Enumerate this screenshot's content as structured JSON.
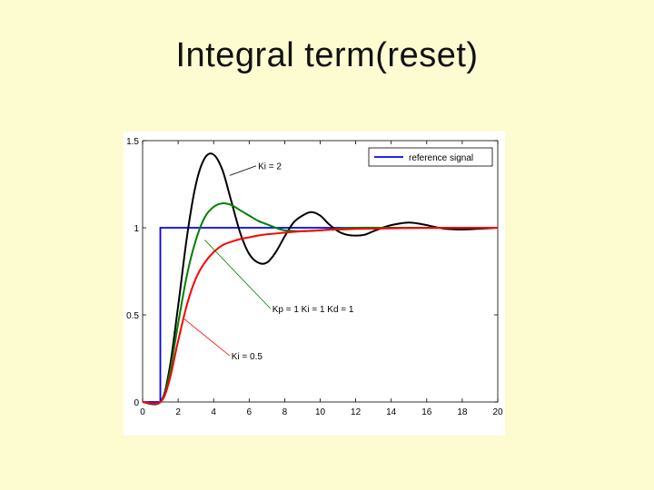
{
  "slide": {
    "title": "Integral term(reset)"
  },
  "chart_data": {
    "type": "line",
    "title": "",
    "xlabel": "",
    "ylabel": "",
    "xlim": [
      0,
      20
    ],
    "ylim": [
      0,
      1.5
    ],
    "xticks": [
      "0",
      "2",
      "4",
      "6",
      "8",
      "10",
      "12",
      "14",
      "16",
      "18",
      "20"
    ],
    "yticks": [
      "0",
      "0.5",
      "1",
      "1.5"
    ],
    "grid": false,
    "legend": {
      "placement": "top-right",
      "entries": [
        "reference signal"
      ]
    },
    "colors": {
      "reference": "#0000ff",
      "ki2": "#000000",
      "kp1": "#008000",
      "ki05": "#ff0000"
    },
    "series": [
      {
        "name": "reference signal",
        "x": [
          0,
          1,
          1,
          20
        ],
        "y": [
          0,
          0,
          1,
          1
        ]
      },
      {
        "annotation": "Ki = 2",
        "x": [
          0,
          1,
          1.5,
          2,
          2.5,
          3,
          3.5,
          4,
          4.5,
          5,
          5.5,
          6,
          6.5,
          7,
          7.5,
          8,
          8.5,
          9,
          9.5,
          10,
          10.5,
          11,
          11.5,
          12,
          12.5,
          13,
          13.5,
          14,
          14.5,
          15,
          15.5,
          16,
          17,
          18,
          19,
          20
        ],
        "y": [
          0,
          0,
          0.18,
          0.55,
          0.95,
          1.25,
          1.4,
          1.42,
          1.33,
          1.15,
          0.97,
          0.85,
          0.8,
          0.8,
          0.86,
          0.95,
          1.03,
          1.07,
          1.09,
          1.07,
          1.02,
          0.98,
          0.96,
          0.955,
          0.96,
          0.98,
          1.0,
          1.015,
          1.025,
          1.03,
          1.025,
          1.015,
          0.995,
          0.99,
          0.995,
          1.0
        ]
      },
      {
        "annotation": "Kp = 1  Ki = 1  Kd = 1",
        "x": [
          0,
          1,
          1.5,
          2,
          2.5,
          3,
          3.5,
          4,
          4.5,
          5,
          5.5,
          6,
          6.5,
          7,
          7.5,
          8,
          9,
          10,
          11,
          12,
          14,
          16,
          20
        ],
        "y": [
          0,
          0,
          0.15,
          0.45,
          0.73,
          0.93,
          1.06,
          1.12,
          1.14,
          1.13,
          1.1,
          1.07,
          1.04,
          1.02,
          1.0,
          0.985,
          0.98,
          0.985,
          0.995,
          1.0,
          1.0,
          1.0,
          1.0
        ]
      },
      {
        "annotation": "Ki = 0.5",
        "x": [
          0,
          1,
          1.5,
          2,
          2.5,
          3,
          3.5,
          4,
          4.5,
          5,
          5.5,
          6,
          6.5,
          7,
          8,
          9,
          10,
          11,
          12,
          14,
          16,
          20
        ],
        "y": [
          0,
          0,
          0.12,
          0.35,
          0.56,
          0.71,
          0.8,
          0.86,
          0.9,
          0.92,
          0.935,
          0.945,
          0.955,
          0.962,
          0.972,
          0.98,
          0.986,
          0.99,
          0.993,
          0.997,
          0.999,
          1.0
        ]
      }
    ],
    "annotations": [
      {
        "text": "Ki = 2",
        "x": 6.5,
        "y": 1.34,
        "arrow_to_x": 4.9,
        "arrow_to_y": 1.3,
        "color": "#000000"
      },
      {
        "text": "Kp = 1  Ki = 1  Kd = 1",
        "x": 7.3,
        "y": 0.52,
        "arrow_to_x": 3.5,
        "arrow_to_y": 0.93,
        "color": "#008000"
      },
      {
        "text": "Ki = 0.5",
        "x": 5.0,
        "y": 0.25,
        "arrow_to_x": 2.3,
        "arrow_to_y": 0.48,
        "color": "#ff0000"
      }
    ]
  }
}
